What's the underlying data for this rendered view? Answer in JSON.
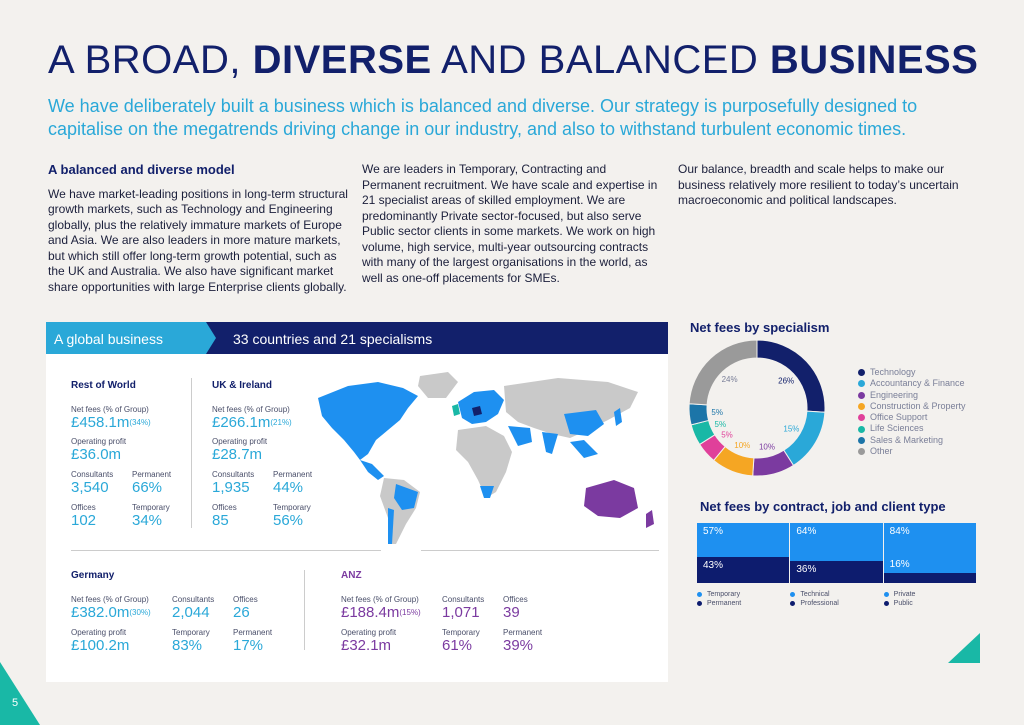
{
  "header": {
    "title_pre": "A BROAD,",
    "title_b1": "DIVERSE",
    "title_mid": "AND BALANCED",
    "title_b2": "BUSINESS",
    "subtitle": "We have deliberately built a business which is balanced and diverse. Our strategy is purposefully designed to capitalise on the megatrends driving change in our industry, and also to withstand turbulent economic times."
  },
  "columns": {
    "col1_heading": "A balanced and diverse model",
    "col1_text": "We have market-leading positions in long-term structural growth markets, such as Technology and Engineering globally, plus the relatively immature markets of Europe and Asia. We are also leaders in more mature markets, but which still offer long-term growth potential, such as the UK and Australia. We also have significant market share opportunities with large Enterprise clients globally.",
    "col2_text": "We are leaders in Temporary, Contracting and Permanent recruitment. We have scale and expertise in 21 specialist areas of skilled employment. We are predominantly Private sector-focused, but also serve Public sector clients in some markets. We work on high volume, high service, multi-year outsourcing contracts with many of the largest organisations in the world, as well as one-off placements for SMEs.",
    "col3_text": "Our balance, breadth and scale helps to make our business relatively more resilient to today’s uncertain macroeconomic and political landscapes."
  },
  "panel": {
    "tab": "A global business",
    "title": "33 countries and 21 specialisms",
    "labels": {
      "net_fees": "Net fees (% of Group)",
      "op_profit": "Operating profit",
      "consultants": "Consultants",
      "permanent": "Permanent",
      "offices": "Offices",
      "temporary": "Temporary"
    },
    "row": {
      "name": "Rest of World",
      "net_fees": "£458.1m",
      "net_fees_pct": "(34%)",
      "op_profit": "£36.0m",
      "consultants": "3,540",
      "permanent": "66%",
      "offices": "102",
      "temporary": "34%"
    },
    "uk": {
      "name": "UK & Ireland",
      "net_fees": "£266.1m",
      "net_fees_pct": "(21%)",
      "op_profit": "£28.7m",
      "consultants": "1,935",
      "permanent": "44%",
      "offices": "85",
      "temporary": "56%"
    },
    "germany": {
      "name": "Germany",
      "net_fees": "£382.0m",
      "net_fees_pct": "(30%)",
      "consultants": "2,044",
      "offices": "26",
      "op_profit": "£100.2m",
      "temporary": "83%",
      "permanent": "17%"
    },
    "anz": {
      "name": "ANZ",
      "net_fees": "£188.4m",
      "net_fees_pct": "(15%)",
      "consultants": "1,071",
      "offices": "39",
      "op_profit": "£32.1m",
      "temporary": "61%",
      "permanent": "39%"
    }
  },
  "specialism": {
    "heading": "Net fees by specialism",
    "slices": [
      {
        "name": "Technology",
        "value": 26,
        "label": "26%",
        "color": "#12206b"
      },
      {
        "name": "Accountancy & Finance",
        "value": 15,
        "label": "15%",
        "color": "#2aa8d8"
      },
      {
        "name": "Engineering",
        "value": 10,
        "label": "10%",
        "color": "#7b3aa0"
      },
      {
        "name": "Construction & Property",
        "value": 10,
        "label": "10%",
        "color": "#f5a623"
      },
      {
        "name": "Office Support",
        "value": 5,
        "label": "5%",
        "color": "#e0409a"
      },
      {
        "name": "Life Sciences",
        "value": 5,
        "label": "5%",
        "color": "#19b8a6"
      },
      {
        "name": "Sales & Marketing",
        "value": 5,
        "label": "5%",
        "color": "#1c75a8"
      },
      {
        "name": "Other",
        "value": 24,
        "label": "24%",
        "color": "#9a9a9a"
      }
    ]
  },
  "contract": {
    "heading": "Net fees by contract, job and client type",
    "bars": [
      {
        "top": "57%",
        "bottom": "43%",
        "top_value": 57,
        "bottom_value": 43,
        "legend_top": "Temporary",
        "legend_bottom": "Permanent"
      },
      {
        "top": "64%",
        "bottom": "36%",
        "top_value": 64,
        "bottom_value": 36,
        "legend_top": "Technical",
        "legend_bottom": "Professional"
      },
      {
        "top": "84%",
        "bottom": "16%",
        "top_value": 84,
        "bottom_value": 16,
        "legend_top": "Private",
        "legend_bottom": "Public"
      }
    ],
    "color_top": "#1e90f0",
    "color_bottom": "#0d1c6e"
  },
  "page_number": "5"
}
